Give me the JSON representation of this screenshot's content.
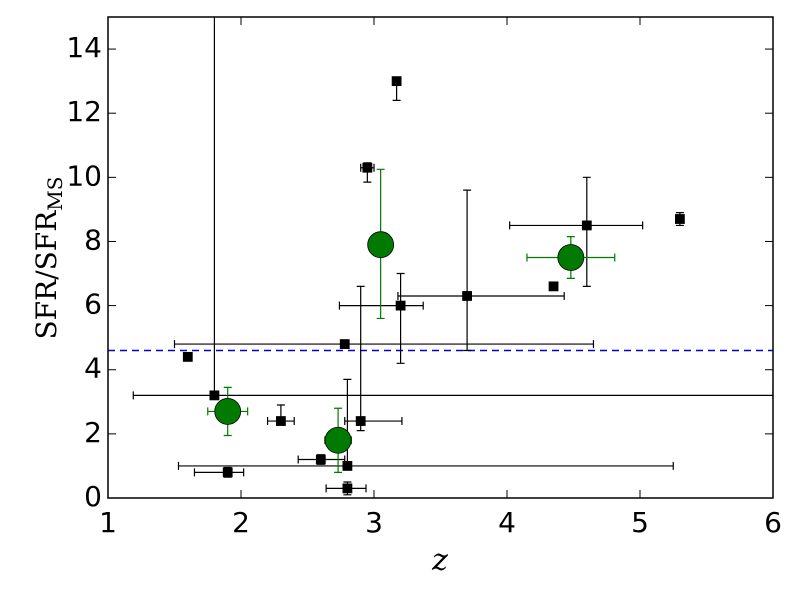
{
  "chart_data": {
    "type": "scatter",
    "xlabel": "z",
    "ylabel": "SFR/SFR",
    "ylabel_subscript": "MS",
    "xlim": [
      1,
      6
    ],
    "ylim": [
      0,
      15
    ],
    "xticks": [
      1,
      2,
      3,
      4,
      5,
      6
    ],
    "yticks": [
      0,
      2,
      4,
      6,
      8,
      10,
      12,
      14
    ],
    "hline": {
      "value": 4.6,
      "color": "#0000cc",
      "style": "dashed"
    },
    "series": [
      {
        "color": "#000000",
        "marker": "square",
        "x": [
          1.6,
          1.8,
          1.9,
          2.3,
          2.6,
          2.78,
          2.8,
          2.8,
          2.9,
          2.95,
          3.17,
          3.2,
          3.7,
          4.35,
          4.6,
          5.3
        ],
        "y": [
          4.4,
          3.2,
          0.8,
          2.4,
          1.2,
          4.8,
          1.0,
          0.3,
          2.4,
          10.3,
          13.0,
          6.0,
          6.3,
          6.6,
          8.5,
          8.7
        ],
        "xerr": [
          null,
          [
            0.61,
            4.2
          ],
          [
            0.25,
            0.12
          ],
          [
            0.1,
            0.1
          ],
          [
            0.17,
            0.18
          ],
          [
            1.28,
            1.87
          ],
          [
            1.27,
            2.45
          ],
          [
            0.16,
            0.14
          ],
          [
            0.12,
            0.31
          ],
          [
            0.05,
            0.05
          ],
          null,
          [
            0.46,
            0.17
          ],
          [
            0.52,
            0.73
          ],
          null,
          [
            0.58,
            0.42
          ],
          null
        ],
        "yerr": [
          null,
          [
            0,
            12
          ],
          [
            0.15,
            0.15
          ],
          [
            0.1,
            0.5
          ],
          [
            0.15,
            0.15
          ],
          null,
          [
            0,
            2.7
          ],
          [
            0.2,
            0.2
          ],
          [
            0.3,
            4.2
          ],
          [
            0.45,
            0.15
          ],
          [
            0.6,
            0
          ],
          [
            1.8,
            1.0
          ],
          [
            1.7,
            3.3
          ],
          [
            0.1,
            0.1
          ],
          [
            1.9,
            1.5
          ],
          [
            0.2,
            0.2
          ]
        ]
      },
      {
        "color": "#007a00",
        "marker": "circle",
        "x": [
          1.9,
          2.73,
          3.05,
          4.48
        ],
        "y": [
          2.7,
          1.8,
          7.9,
          7.5
        ],
        "xerr": [
          [
            0.15,
            0.15
          ],
          [
            0.1,
            0.1
          ],
          null,
          [
            0.33,
            0.33
          ]
        ],
        "yerr": [
          [
            0.75,
            0.75
          ],
          [
            1.0,
            1.0
          ],
          [
            2.3,
            2.35
          ],
          [
            0.65,
            0.65
          ]
        ]
      }
    ]
  }
}
